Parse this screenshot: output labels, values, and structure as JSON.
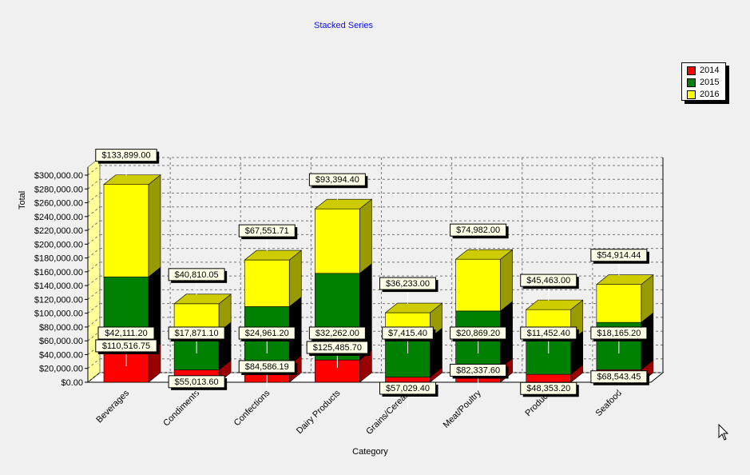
{
  "chart_data": {
    "type": "bar",
    "stacked": true,
    "three_d": true,
    "title": "Stacked Series",
    "xlabel": "Category",
    "ylabel": "Total",
    "ylim": [
      0,
      300000
    ],
    "ytick_step": 20000,
    "grid": true,
    "legend_position": "top-right",
    "categories": [
      "Beverages",
      "Condiments",
      "Confections",
      "Dairy Products",
      "Grains/Cereals",
      "Meat/Poultry",
      "Produce",
      "Seafood"
    ],
    "series": [
      {
        "name": "2014",
        "color": "#ff0000",
        "side": "#9a0000",
        "top": "#cc0000",
        "values": [
          42111.2,
          17871.1,
          24961.2,
          32262.0,
          7415.4,
          20869.2,
          11452.4,
          18165.2
        ],
        "labels": [
          "$42,111.20",
          "$17,871.10",
          "$24,961.20",
          "$32,262.00",
          "$7,415.40",
          "$20,869.20",
          "$11,452.40",
          "$18,165.20"
        ]
      },
      {
        "name": "2015",
        "color": "#008000",
        "side": "#000000",
        "top": "#006000",
        "values": [
          110516.75,
          55013.6,
          84586.19,
          125485.7,
          57029.4,
          82337.6,
          48353.2,
          68543.45
        ],
        "labels": [
          "$110,516.75",
          "$55,013.60",
          "$84,586.19",
          "$125,485.70",
          "$57,029.40",
          "$82,337.60",
          "$48,353.20",
          "$68,543.45"
        ]
      },
      {
        "name": "2016",
        "color": "#ffff00",
        "side": "#999900",
        "top": "#cccc00",
        "values": [
          133899.0,
          40810.05,
          67551.71,
          93394.4,
          36233.0,
          74982.0,
          45463.0,
          54914.44
        ],
        "labels": [
          "$133,899.00",
          "$40,810.05",
          "$67,551.71",
          "$93,394.40",
          "$36,233.00",
          "$74,982.00",
          "$45,463.00",
          "$54,914.44"
        ]
      }
    ],
    "y_tick_labels": [
      "$0.00",
      "$20,000.00",
      "$40,000.00",
      "$60,000.00",
      "$80,000.00",
      "$100,000.00",
      "$120,000.00",
      "$140,000.00",
      "$160,000.00",
      "$180,000.00",
      "$200,000.00",
      "$220,000.00",
      "$240,000.00",
      "$260,000.00",
      "$280,000.00",
      "$300,000.00"
    ]
  }
}
